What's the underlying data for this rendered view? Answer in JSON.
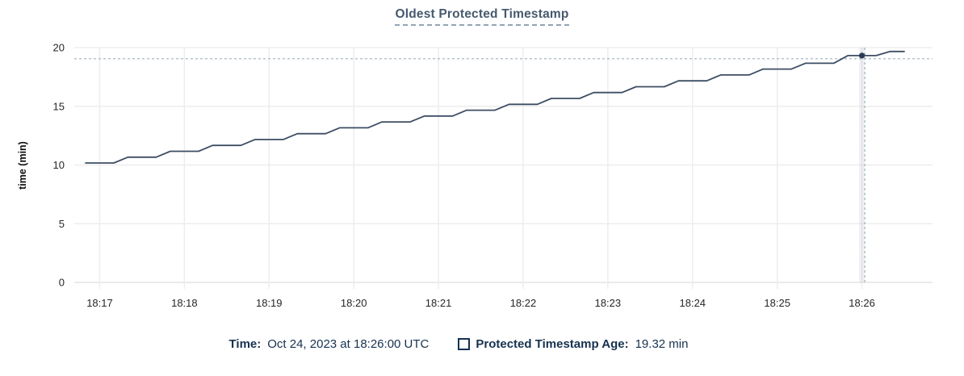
{
  "title": "Oldest Protected Timestamp",
  "legend": {
    "time_label": "Time:",
    "time_value": "Oct 24, 2023 at 18:26:00 UTC",
    "series_label": "Protected Timestamp Age:",
    "series_value": "19.32 min",
    "checkbox_icon": "checkbox-unchecked"
  },
  "colors": {
    "line": "#3d4e64",
    "point": "#2b3c52",
    "crosshair": "#9db1bd",
    "grid": "#ededed",
    "grid_bottom": "#e3e3e3",
    "hover_band": "rgba(120,140,160,0.12)",
    "title_text": "#46596e",
    "legend_text": "#16324f",
    "tick_text": "#262626",
    "axis_title_text": "#111111"
  },
  "chart_data": {
    "type": "line",
    "title": "Oldest Protected Timestamp",
    "xlabel": "",
    "ylabel": "time (min)",
    "ylim": [
      0,
      20
    ],
    "y_ticks": [
      0,
      5,
      10,
      15,
      20
    ],
    "x_ticks": [
      "18:17",
      "18:18",
      "18:19",
      "18:20",
      "18:21",
      "18:22",
      "18:23",
      "18:24",
      "18:25",
      "18:26"
    ],
    "x_domain": [
      "18:16:42",
      "18:26:50"
    ],
    "grid": true,
    "legend_position": "bottom",
    "series": [
      {
        "name": "Protected Timestamp Age",
        "unit": "min",
        "points": [
          [
            "18:16:50",
            10.17
          ],
          [
            "18:17:00",
            10.17
          ],
          [
            "18:17:10",
            10.17
          ],
          [
            "18:17:20",
            10.67
          ],
          [
            "18:17:30",
            10.67
          ],
          [
            "18:17:40",
            10.67
          ],
          [
            "18:17:50",
            11.17
          ],
          [
            "18:18:00",
            11.17
          ],
          [
            "18:18:10",
            11.17
          ],
          [
            "18:18:20",
            11.67
          ],
          [
            "18:18:30",
            11.67
          ],
          [
            "18:18:40",
            11.67
          ],
          [
            "18:18:50",
            12.17
          ],
          [
            "18:19:00",
            12.17
          ],
          [
            "18:19:10",
            12.17
          ],
          [
            "18:19:20",
            12.67
          ],
          [
            "18:19:30",
            12.67
          ],
          [
            "18:19:40",
            12.67
          ],
          [
            "18:19:50",
            13.17
          ],
          [
            "18:20:00",
            13.17
          ],
          [
            "18:20:10",
            13.17
          ],
          [
            "18:20:20",
            13.67
          ],
          [
            "18:20:30",
            13.67
          ],
          [
            "18:20:40",
            13.67
          ],
          [
            "18:20:50",
            14.17
          ],
          [
            "18:21:00",
            14.17
          ],
          [
            "18:21:10",
            14.17
          ],
          [
            "18:21:20",
            14.67
          ],
          [
            "18:21:30",
            14.67
          ],
          [
            "18:21:40",
            14.67
          ],
          [
            "18:21:50",
            15.17
          ],
          [
            "18:22:00",
            15.17
          ],
          [
            "18:22:10",
            15.17
          ],
          [
            "18:22:20",
            15.67
          ],
          [
            "18:22:30",
            15.67
          ],
          [
            "18:22:40",
            15.67
          ],
          [
            "18:22:50",
            16.17
          ],
          [
            "18:23:00",
            16.17
          ],
          [
            "18:23:10",
            16.17
          ],
          [
            "18:23:20",
            16.67
          ],
          [
            "18:23:30",
            16.67
          ],
          [
            "18:23:40",
            16.67
          ],
          [
            "18:23:50",
            17.17
          ],
          [
            "18:24:00",
            17.17
          ],
          [
            "18:24:10",
            17.17
          ],
          [
            "18:24:20",
            17.67
          ],
          [
            "18:24:30",
            17.67
          ],
          [
            "18:24:40",
            17.67
          ],
          [
            "18:24:50",
            18.17
          ],
          [
            "18:25:00",
            18.17
          ],
          [
            "18:25:10",
            18.17
          ],
          [
            "18:25:20",
            18.67
          ],
          [
            "18:25:30",
            18.67
          ],
          [
            "18:25:40",
            18.67
          ],
          [
            "18:25:50",
            19.32
          ],
          [
            "18:26:00",
            19.32
          ],
          [
            "18:26:10",
            19.32
          ],
          [
            "18:26:20",
            19.67
          ],
          [
            "18:26:30",
            19.67
          ]
        ]
      }
    ],
    "highlight_point": {
      "t": "18:26:00",
      "v": 19.32
    },
    "crosshair": {
      "t": "18:26:02",
      "v": 19.05
    }
  }
}
